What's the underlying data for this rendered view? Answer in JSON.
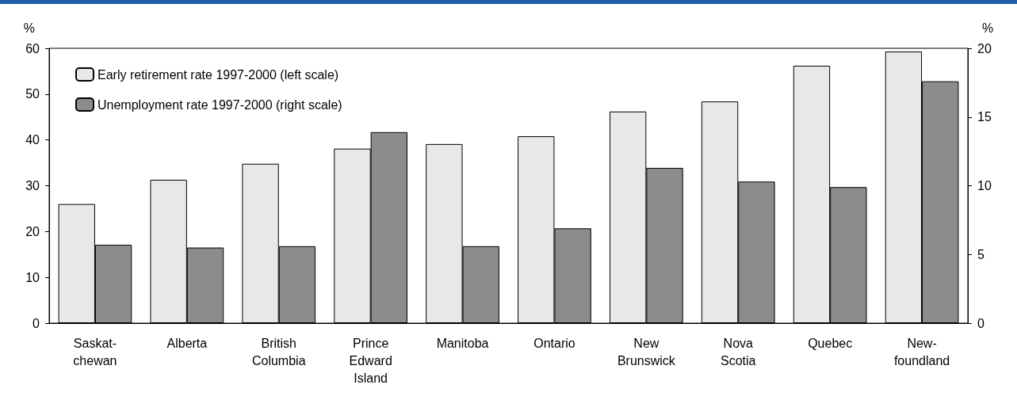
{
  "chart_data": {
    "type": "bar",
    "ylabel": "%",
    "y2label": "%",
    "categories": [
      "Saskat-\nchewan",
      "Alberta",
      "British\nColumbia",
      "Prince\nEdward\nIsland",
      "Manitoba",
      "Ontario",
      "New\nBrunswick",
      "Nova\nScotia",
      "Quebec",
      "New-\nfoundland"
    ],
    "series": [
      {
        "name": "Early retirement rate 1997-2000 (left scale)",
        "color": "#e8e8e8",
        "values": [
          26,
          31.3,
          34.8,
          38.1,
          39.1,
          40.8,
          46.2,
          48.4,
          56.2,
          59.3
        ]
      },
      {
        "name": "Unemployment rate 1997-2000 (right scale)",
        "color": "#8c8c8c",
        "axis": "y2",
        "values": [
          5.7,
          5.5,
          5.6,
          13.9,
          5.6,
          6.9,
          11.3,
          10.3,
          9.9,
          17.6
        ]
      }
    ],
    "ylim": [
      0,
      60
    ],
    "yticks": [
      0,
      10,
      20,
      30,
      40,
      50,
      60
    ],
    "y2lim": [
      0,
      20
    ],
    "y2ticks": [
      0,
      5,
      10,
      15,
      20
    ],
    "grid": false,
    "legend": "top left"
  }
}
